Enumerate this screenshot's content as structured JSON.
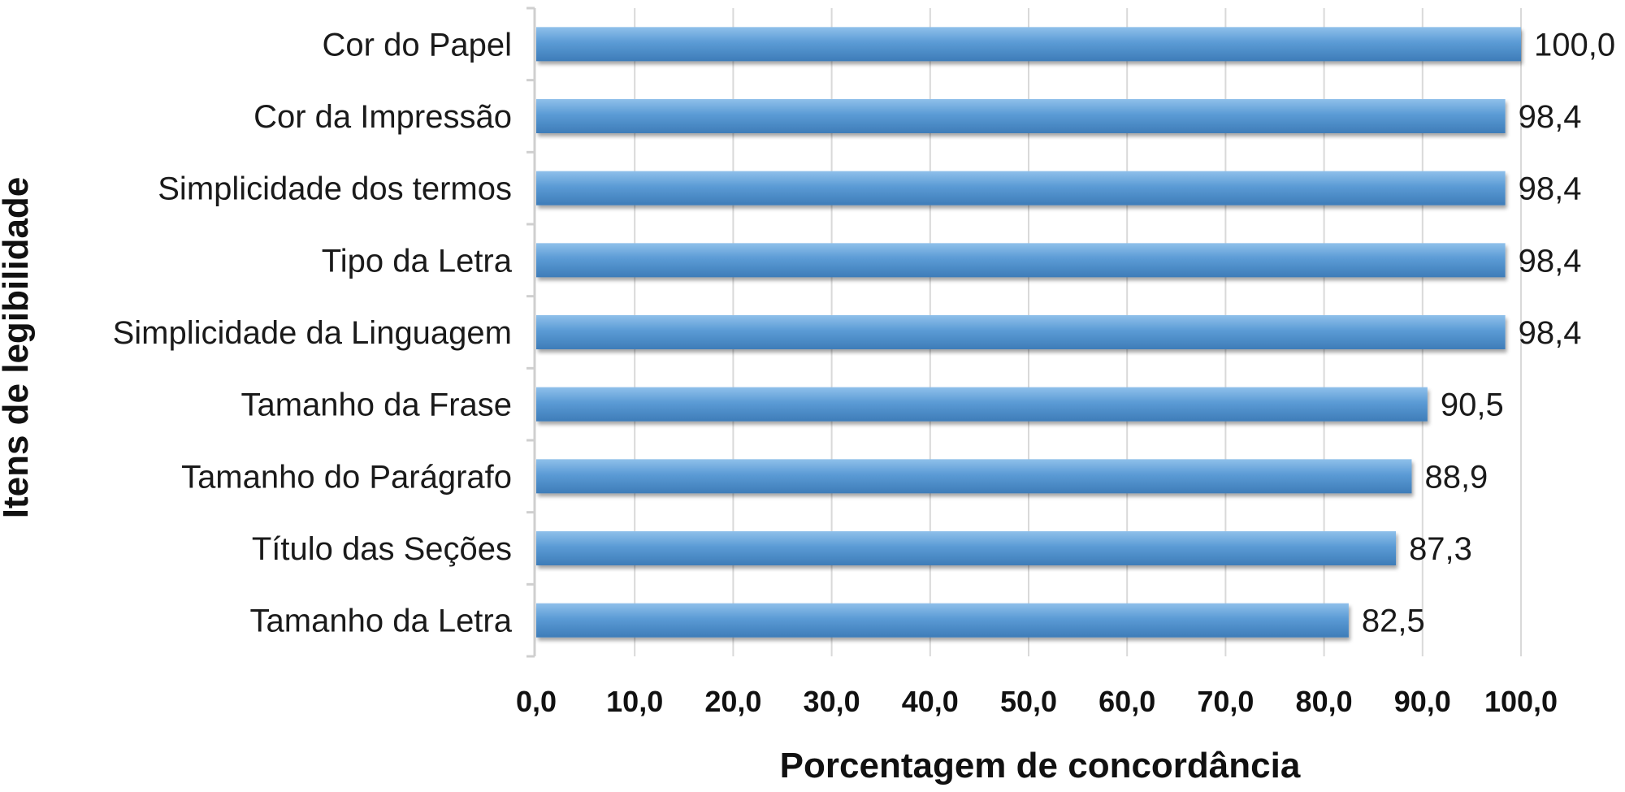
{
  "chart_data": {
    "type": "bar",
    "orientation": "horizontal",
    "categories": [
      "Cor do Papel",
      "Cor da Impressão",
      "Simplicidade dos termos",
      "Tipo da Letra",
      "Simplicidade da Linguagem",
      "Tamanho da Frase",
      "Tamanho do Parágrafo",
      "Título das Seções",
      "Tamanho da Letra"
    ],
    "values": [
      100.0,
      98.4,
      98.4,
      98.4,
      98.4,
      90.5,
      88.9,
      87.3,
      82.5
    ],
    "value_labels": [
      "100,0",
      "98,4",
      "98,4",
      "98,4",
      "98,4",
      "90,5",
      "88,9",
      "87,3",
      "82,5"
    ],
    "xlabel": "Porcentagem de concordância",
    "ylabel": "Itens de legibilidade",
    "xlim": [
      0,
      100
    ],
    "xticks": [
      0,
      10,
      20,
      30,
      40,
      50,
      60,
      70,
      80,
      90,
      100
    ],
    "xtick_labels": [
      "0,0",
      "10,0",
      "20,0",
      "30,0",
      "40,0",
      "50,0",
      "60,0",
      "70,0",
      "80,0",
      "90,0",
      "100,0"
    ],
    "grid": true,
    "legend": "none",
    "colors": {
      "bar": "#5b9bd5",
      "bar_highlight": "#8fc0ea",
      "bar_shadow": "#3e7cb8",
      "grid": "#d9d9d9",
      "axis": "#cfcfcf"
    }
  }
}
